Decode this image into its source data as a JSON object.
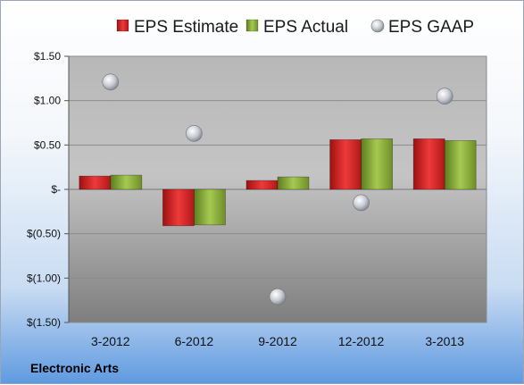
{
  "chart_data": {
    "type": "bar",
    "categories": [
      "3-2012",
      "6-2012",
      "9-2012",
      "12-2012",
      "3-2013"
    ],
    "series": [
      {
        "name": "EPS Estimate",
        "type": "bar",
        "color": "#d42a2a",
        "values": [
          0.15,
          -0.41,
          0.1,
          0.56,
          0.57
        ]
      },
      {
        "name": "EPS Actual",
        "type": "bar",
        "color": "#8cb23a",
        "values": [
          0.16,
          -0.4,
          0.14,
          0.57,
          0.55
        ]
      },
      {
        "name": "EPS GAAP",
        "type": "scatter",
        "color": "#aeb4be",
        "values": [
          1.21,
          0.63,
          -1.21,
          -0.15,
          1.05
        ]
      }
    ],
    "yticks": [
      {
        "value": 1.5,
        "label": "$1.50"
      },
      {
        "value": 1.0,
        "label": "$1.00"
      },
      {
        "value": 0.5,
        "label": "$0.50"
      },
      {
        "value": 0.0,
        "label": "$-"
      },
      {
        "value": -0.5,
        "label": "$(0.50)"
      },
      {
        "value": -1.0,
        "label": "$(1.00)"
      },
      {
        "value": -1.5,
        "label": "$(1.50)"
      }
    ],
    "ylim": [
      -1.5,
      1.5
    ],
    "grid": true,
    "legend": "top",
    "caption": "Electronic Arts"
  }
}
